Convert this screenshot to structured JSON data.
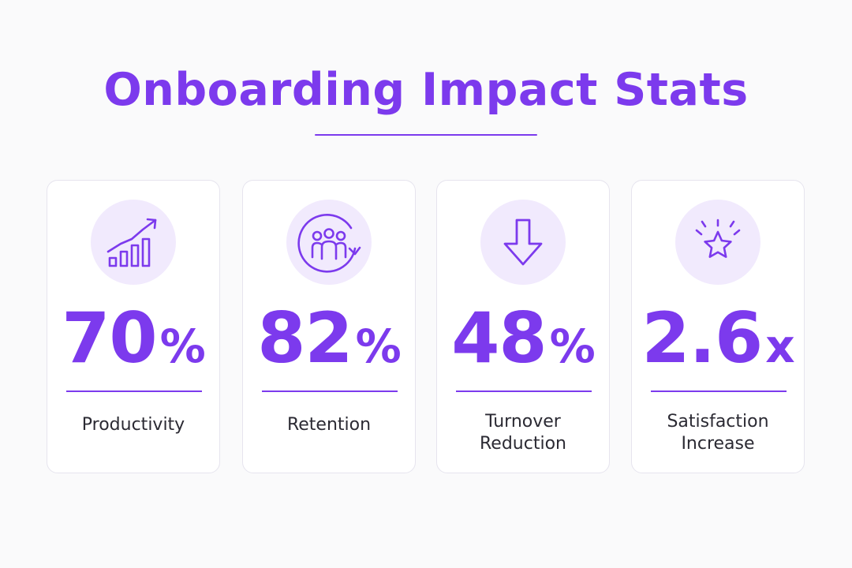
{
  "title": "Onboarding Impact Stats",
  "cards": [
    {
      "value": "70",
      "unit": "%",
      "label_lines": [
        "Productivity"
      ],
      "icon": "growth-chart-icon"
    },
    {
      "value": "82",
      "unit": "%",
      "label_lines": [
        "Retention"
      ],
      "icon": "team-retention-icon"
    },
    {
      "value": "48",
      "unit": "%",
      "label_lines": [
        "Turnover",
        "Reduction"
      ],
      "icon": "down-arrow-icon"
    },
    {
      "value": "2.6",
      "unit": "x",
      "label_lines": [
        "Satisfaction",
        "Increase"
      ],
      "icon": "star-icon"
    }
  ],
  "colors": {
    "accent": "#7c3aed",
    "icon_bg": "#f1eafd",
    "card_bg": "#ffffff",
    "page_bg": "#fafafb",
    "label_text": "#2b2a33"
  }
}
